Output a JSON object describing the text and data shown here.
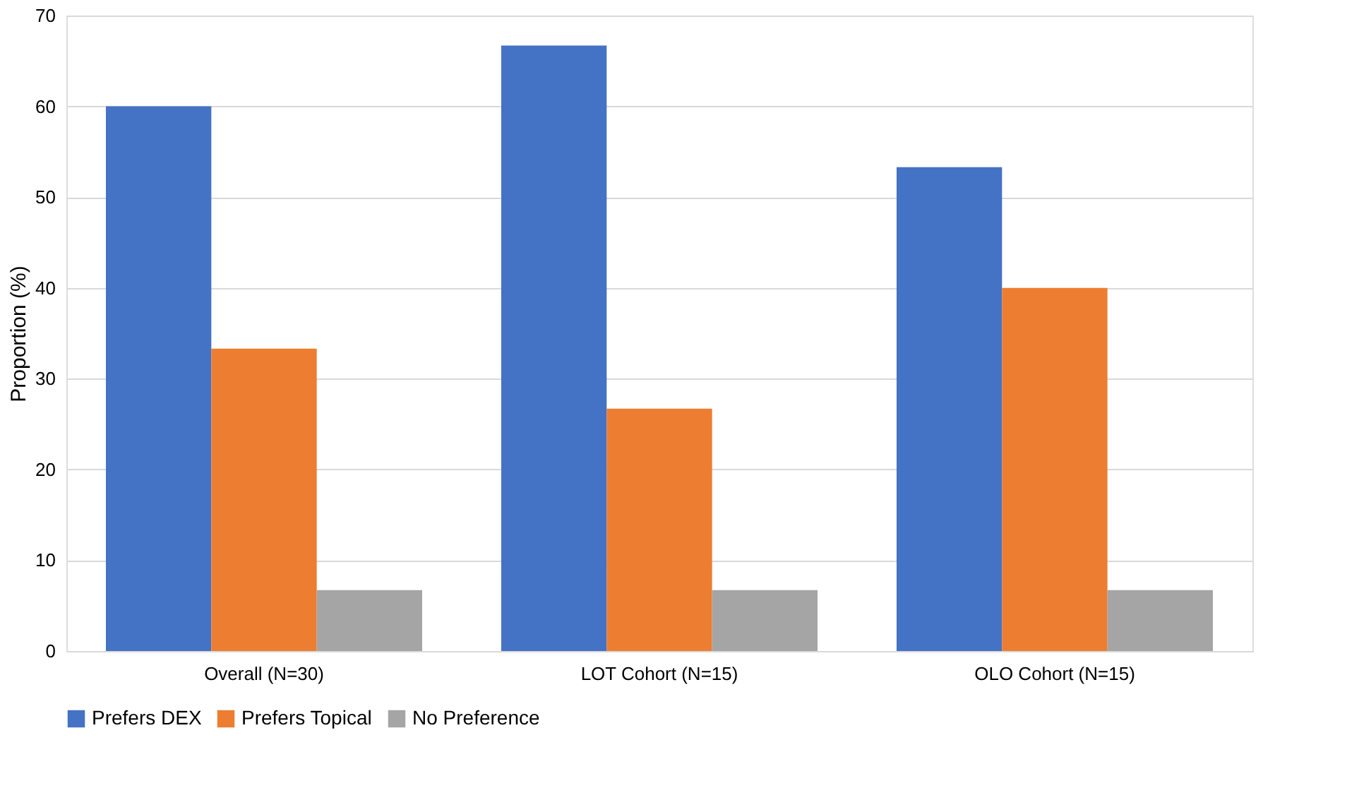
{
  "chart_data": {
    "type": "bar",
    "ylabel": "Proportion (%)",
    "categories": [
      "Overall (N=30)",
      "LOT Cohort (N=15)",
      "OLO Cohort (N=15)"
    ],
    "series": [
      {
        "name": "Prefers DEX",
        "color": "#4472c4",
        "values": [
          60,
          66.7,
          53.3
        ]
      },
      {
        "name": "Prefers Topical",
        "color": "#ed7d31",
        "values": [
          33.3,
          26.7,
          40
        ]
      },
      {
        "name": "No Preference",
        "color": "#a5a5a5",
        "values": [
          6.7,
          6.7,
          6.7
        ]
      }
    ],
    "ylim": [
      0,
      70
    ],
    "yticks": [
      0,
      10,
      20,
      30,
      40,
      50,
      60,
      70
    ],
    "grid": "y",
    "legend": "bottom"
  }
}
